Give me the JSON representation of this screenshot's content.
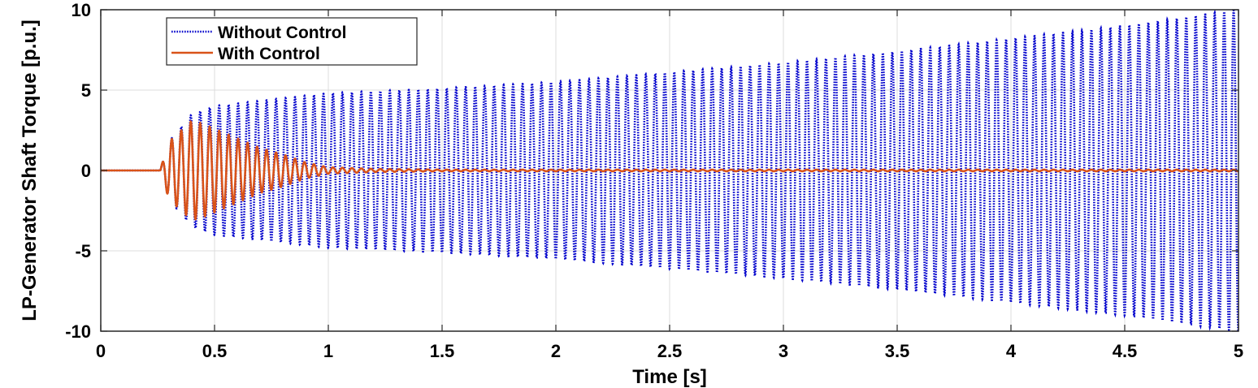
{
  "chart_data": {
    "type": "line",
    "title": "",
    "xlabel": "Time [s]",
    "ylabel": "LP-Generator Shaft Torque [p.u.]",
    "xlim": [
      0,
      5
    ],
    "ylim": [
      -10,
      10
    ],
    "grid": true,
    "legend_position": "top-left",
    "x_ticks": [
      0,
      0.5,
      1,
      1.5,
      2,
      2.5,
      3,
      3.5,
      4,
      4.5,
      5
    ],
    "x_tick_labels": [
      "0",
      "0.5",
      "1",
      "1.5",
      "2",
      "2.5",
      "3",
      "3.5",
      "4",
      "4.5",
      "5"
    ],
    "y_ticks": [
      10,
      5,
      0,
      -5,
      -10
    ],
    "y_tick_labels": [
      "10",
      "5",
      "0",
      "-5",
      "-10"
    ],
    "series": [
      {
        "name": "Without Control",
        "color": "#0000CC",
        "line_style": "dotted",
        "fault_time": 0.26,
        "oscillation_frequency_hz": 24,
        "envelope": {
          "t": [
            0.26,
            0.3,
            0.4,
            0.5,
            1.0,
            1.5,
            2.0,
            2.5,
            3.0,
            3.5,
            4.0,
            4.5,
            5.0
          ],
          "amplitude": [
            0,
            1.8,
            3.5,
            4.0,
            4.8,
            5.1,
            5.5,
            6.1,
            6.7,
            7.4,
            8.2,
            9.0,
            10.0
          ]
        }
      },
      {
        "name": "With Control",
        "color": "#D95319",
        "line_style": "solid",
        "fault_time": 0.26,
        "oscillation_frequency_hz": 24,
        "envelope": {
          "t": [
            0.26,
            0.3,
            0.4,
            0.45,
            0.5,
            0.6,
            0.7,
            0.8,
            0.9,
            1.0,
            1.2,
            1.5,
            5.0
          ],
          "amplitude": [
            0,
            1.8,
            3.1,
            2.9,
            2.6,
            2.0,
            1.4,
            1.0,
            0.5,
            0.2,
            0.1,
            0.05,
            0.05
          ]
        }
      }
    ]
  }
}
